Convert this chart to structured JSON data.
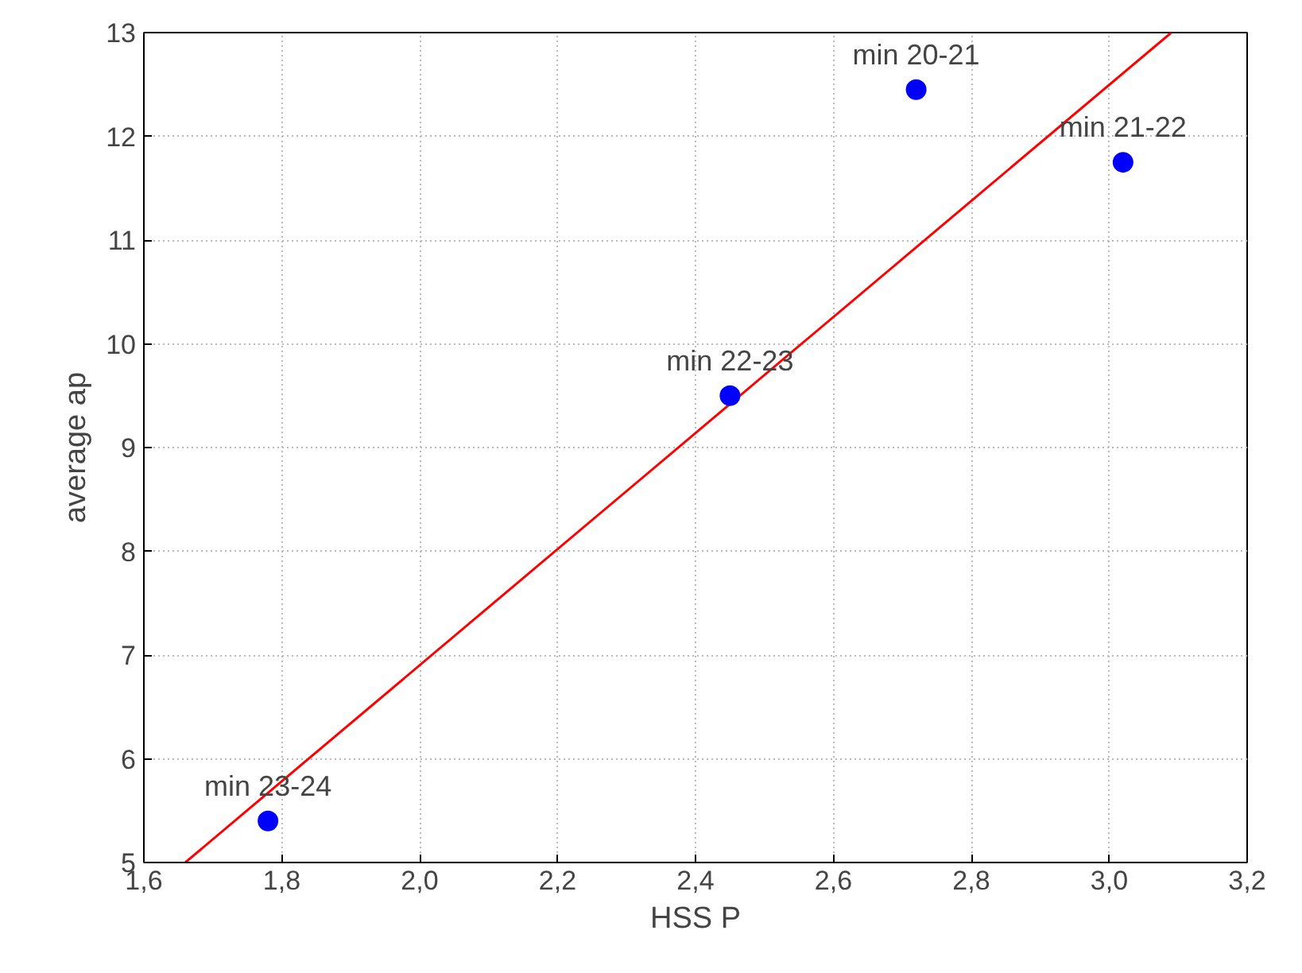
{
  "chart_data": {
    "type": "scatter",
    "xlabel": "HSS P",
    "ylabel": "average ap",
    "xlim": [
      1.6,
      3.2
    ],
    "ylim": [
      5,
      13
    ],
    "xticks": [
      {
        "value": 1.6,
        "label": "1,6"
      },
      {
        "value": 1.8,
        "label": "1,8"
      },
      {
        "value": 2.0,
        "label": "2,0"
      },
      {
        "value": 2.2,
        "label": "2,2"
      },
      {
        "value": 2.4,
        "label": "2,4"
      },
      {
        "value": 2.6,
        "label": "2,6"
      },
      {
        "value": 2.8,
        "label": "2,8"
      },
      {
        "value": 3.0,
        "label": "3,0"
      },
      {
        "value": 3.2,
        "label": "3,2"
      }
    ],
    "yticks": [
      5,
      6,
      7,
      8,
      9,
      10,
      11,
      12,
      13
    ],
    "grid": true,
    "series": [
      {
        "marker": "circle",
        "color": "#0000ff",
        "x": [
          1.78,
          2.45,
          2.72,
          3.02
        ],
        "values": [
          5.4,
          9.5,
          12.45,
          11.75
        ]
      },
      {
        "type": "line",
        "color": "#ff0000",
        "x": [
          1.66,
          3.09
        ],
        "values": [
          5,
          13
        ]
      }
    ],
    "annotations": [
      {
        "text": "min 23-24",
        "x": 1.78,
        "y": 5.4
      },
      {
        "text": "min 22-23",
        "x": 2.45,
        "y": 9.5
      },
      {
        "text": "min 20-21",
        "x": 2.72,
        "y": 12.45
      },
      {
        "text": "min 21-22",
        "x": 3.02,
        "y": 11.75
      }
    ]
  }
}
